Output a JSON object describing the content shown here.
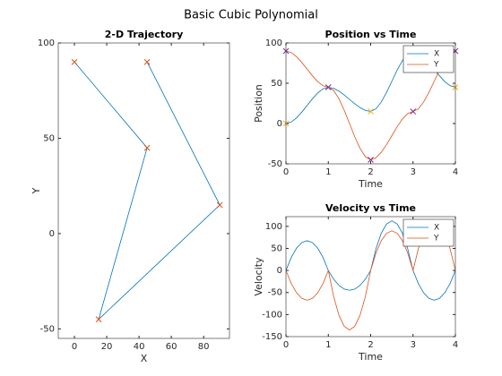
{
  "figure_title": "Basic Cubic Polynomial",
  "chart_data": [
    {
      "type": "line",
      "title": "2-D Trajectory",
      "x_label": "X",
      "y_label": "Y",
      "x": [
        0,
        45,
        15,
        90,
        45
      ],
      "series": [
        {
          "color": "#0072bd",
          "marker_color": "#d95319",
          "values": [
            90,
            45,
            -45,
            15,
            90
          ]
        }
      ],
      "xlim": [
        -10,
        96
      ],
      "xticks": [
        0,
        20,
        40,
        60,
        80
      ],
      "ylim": [
        -55,
        100
      ],
      "yticks": [
        -50,
        0,
        50,
        100
      ]
    },
    {
      "type": "line",
      "title": "Position vs Time",
      "x_label": "Time",
      "y_label": "Position",
      "x": [
        0,
        0.125,
        0.25,
        0.375,
        0.5,
        0.625,
        0.75,
        0.875,
        1,
        1.125,
        1.25,
        1.375,
        1.5,
        1.625,
        1.75,
        1.875,
        2,
        2.125,
        2.25,
        2.375,
        2.5,
        2.625,
        2.75,
        2.875,
        3,
        3.125,
        3.25,
        3.375,
        3.5,
        3.625,
        3.75,
        3.875,
        4
      ],
      "series": [
        {
          "name": "X",
          "color": "#0072bd",
          "values": [
            0,
            1.93,
            7.03,
            14.24,
            22.5,
            30.76,
            37.97,
            43.07,
            45,
            43.71,
            40.31,
            35.51,
            30,
            24.49,
            19.69,
            16.29,
            15,
            18.22,
            26.72,
            38.73,
            52.5,
            66.27,
            78.28,
            86.78,
            90,
            88.07,
            82.97,
            75.76,
            67.5,
            59.24,
            52.03,
            46.93,
            45
          ]
        },
        {
          "name": "Y",
          "color": "#d95319",
          "values": [
            90,
            88.07,
            82.97,
            75.76,
            67.5,
            59.24,
            52.03,
            46.93,
            45,
            41.13,
            30.94,
            16.52,
            0,
            -16.52,
            -30.94,
            -41.13,
            -45,
            -42.42,
            -35.63,
            -26.02,
            -15,
            -3.98,
            5.63,
            12.42,
            15,
            18.22,
            26.72,
            38.73,
            52.5,
            66.27,
            78.28,
            86.78,
            90
          ]
        }
      ],
      "marker_x": [
        0,
        1,
        2,
        3,
        4
      ],
      "markers": [
        {
          "color": "#edb120",
          "values": [
            0,
            45,
            15,
            90,
            45
          ]
        },
        {
          "color": "#7e2f8e",
          "values": [
            90,
            45,
            -45,
            15,
            90
          ]
        }
      ],
      "xlim": [
        0,
        4
      ],
      "xticks": [
        0,
        1,
        2,
        3,
        4
      ],
      "ylim": [
        -50,
        100
      ],
      "yticks": [
        -50,
        0,
        50,
        100
      ],
      "legend": "northeast"
    },
    {
      "type": "line",
      "title": "Velocity vs Time",
      "x_label": "Time",
      "y_label": "Velocity",
      "x": [
        0,
        0.125,
        0.25,
        0.375,
        0.5,
        0.625,
        0.75,
        0.875,
        1,
        1.125,
        1.25,
        1.375,
        1.5,
        1.625,
        1.75,
        1.875,
        2,
        2.125,
        2.25,
        2.375,
        2.5,
        2.625,
        2.75,
        2.875,
        3,
        3.125,
        3.25,
        3.375,
        3.5,
        3.625,
        3.75,
        3.875,
        4
      ],
      "series": [
        {
          "name": "X",
          "color": "#0072bd",
          "values": [
            0,
            29.53,
            50.63,
            63.28,
            67.5,
            63.28,
            50.63,
            29.53,
            0,
            -19.69,
            -33.75,
            -42.19,
            -45,
            -42.19,
            -33.75,
            -19.69,
            0,
            49.22,
            84.38,
            105.47,
            112.5,
            105.47,
            84.38,
            49.22,
            0,
            -29.53,
            -50.63,
            -63.28,
            -67.5,
            -63.28,
            -50.63,
            -29.53,
            0
          ]
        },
        {
          "name": "Y",
          "color": "#d95319",
          "values": [
            0,
            -29.53,
            -50.63,
            -63.28,
            -67.5,
            -63.28,
            -50.63,
            -29.53,
            0,
            -59.06,
            -101.25,
            -126.56,
            -135,
            -126.56,
            -101.25,
            -59.06,
            0,
            39.38,
            67.5,
            84.38,
            90,
            84.38,
            67.5,
            39.38,
            0,
            49.22,
            84.38,
            105.47,
            112.5,
            105.47,
            84.38,
            49.22,
            0
          ]
        }
      ],
      "xlim": [
        0,
        4
      ],
      "xticks": [
        0,
        1,
        2,
        3,
        4
      ],
      "ylim": [
        -150,
        122
      ],
      "yticks": [
        -150,
        -100,
        -50,
        0,
        50,
        100
      ],
      "legend": "northeast"
    }
  ]
}
